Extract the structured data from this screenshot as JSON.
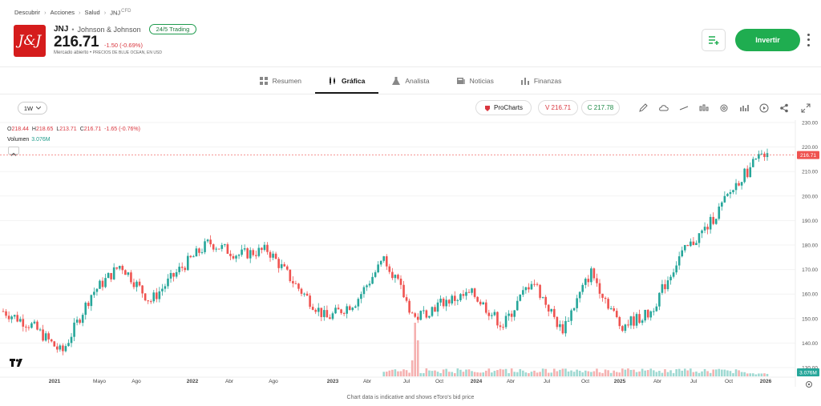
{
  "breadcrumb": [
    "Descubrir",
    "Acciones",
    "Salud",
    "JNJ"
  ],
  "breadcrumb_suffix": "CFD",
  "header": {
    "logo_text": "J&J",
    "ticker": "JNJ",
    "company": "Johnson & Johnson",
    "trading_badge": "24/5 Trading",
    "price": "216.71",
    "change": "-1.50 (-0.69%)",
    "market_state": "Mercado abierto",
    "price_source": "PRECIOS DE BLUE OCEAN, EN USD"
  },
  "actions": {
    "invest_label": "Invertir",
    "watch_icon": "watchlist-add-icon",
    "more_icon": "more-vertical-icon"
  },
  "tabs": [
    {
      "label": "Resumen",
      "icon": "grid-icon",
      "active": false
    },
    {
      "label": "Gráfica",
      "icon": "candles-icon",
      "active": true
    },
    {
      "label": "Analista",
      "icon": "flask-icon",
      "active": false
    },
    {
      "label": "Noticias",
      "icon": "news-icon",
      "active": false
    },
    {
      "label": "Finanzas",
      "icon": "bar-chart-icon",
      "active": false
    }
  ],
  "toolbar": {
    "interval": "1W",
    "procharts": "ProCharts",
    "sell": "V 216.71",
    "buy": "C 217.78",
    "tools": [
      "pencil-icon",
      "shapes-icon",
      "line-icon",
      "indicators-icon",
      "settings-icon",
      "bars-icon",
      "replay-icon",
      "share-icon",
      "fullscreen-icon"
    ]
  },
  "legend": {
    "o_label": "O",
    "o": "218.44",
    "h_label": "H",
    "h": "218.65",
    "l_label": "L",
    "l": "213.71",
    "c_label": "C",
    "c": "216.71",
    "chg": "-1.65 (-0.76%)",
    "volume_label": "Volumen",
    "volume": "3.076M"
  },
  "footer_note": "Chart data is indicative and shows eToro's bid price",
  "colors": {
    "up": "#26a69a",
    "down": "#ef5350",
    "accent": "#1fad50",
    "price_line": "#ef5350"
  },
  "chart_data": {
    "type": "candlestick",
    "y_ticks": [
      "230.00",
      "220.00",
      "210.00",
      "200.00",
      "190.00",
      "180.00",
      "170.00",
      "160.00",
      "150.00",
      "140.00",
      "130.00"
    ],
    "ylim": [
      127.5,
      231.5
    ],
    "x_ticks": [
      "2021",
      "Mayo",
      "Ago",
      "2022",
      "Abr",
      "Ago",
      "2023",
      "Abr",
      "Jul",
      "Oct",
      "2024",
      "Abr",
      "Jul",
      "Oct",
      "2025",
      "Abr",
      "Jul",
      "Oct",
      "2026"
    ],
    "last_price_label": "216.71",
    "volume_label": "3.076M",
    "price_path_dates": [
      "2020-09",
      "2020-11",
      "2021-01",
      "2021-04",
      "2021-08",
      "2021-11",
      "2022-01",
      "2022-04",
      "2022-07",
      "2022-10",
      "2022-12",
      "2023-04",
      "2023-07",
      "2023-08",
      "2023-10",
      "2024-01",
      "2024-04",
      "2024-07",
      "2024-09",
      "2024-12",
      "2025-03",
      "2025-04",
      "2025-07",
      "2025-08",
      "2025-10",
      "2025-12",
      "2026-01"
    ],
    "price_path": [
      153,
      147,
      136,
      160,
      172,
      157,
      170,
      181,
      176,
      178,
      163,
      150,
      157,
      175,
      150,
      157,
      160,
      147,
      166,
      145,
      169,
      147,
      152,
      175,
      188,
      206,
      219
    ]
  }
}
